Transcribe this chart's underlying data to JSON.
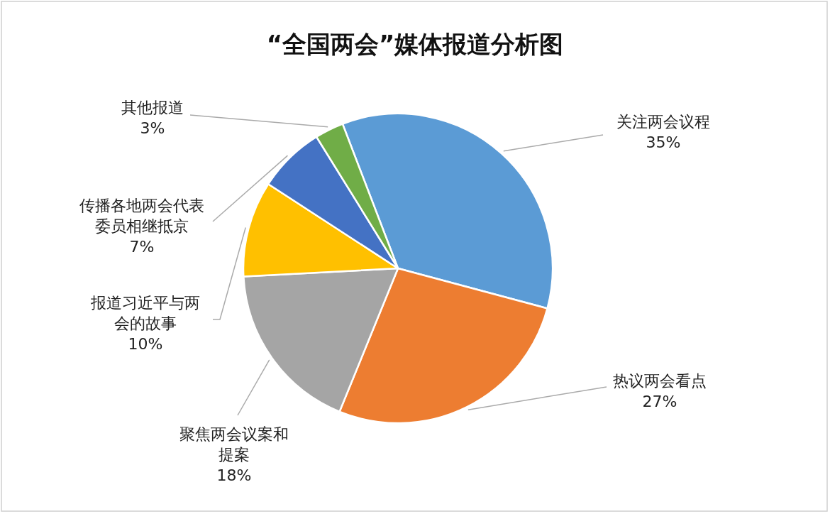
{
  "chart_data": {
    "type": "pie",
    "title": "“全国两会”媒体报道分析图",
    "categories": [
      "关注两会议程",
      "热议两会看点",
      "聚焦两会议案和提案",
      "报道习近平与两会的故事",
      "传播各地两会代表委员相继抵京",
      "其他报道"
    ],
    "values": [
      35,
      27,
      18,
      10,
      7,
      3
    ],
    "colors": [
      "#5b9bd5",
      "#ed7d31",
      "#a5a5a5",
      "#ffc000",
      "#4472c4",
      "#70ad47"
    ],
    "value_labels": [
      "35%",
      "27%",
      "18%",
      "10%",
      "7%",
      "3%"
    ],
    "legend": false
  }
}
